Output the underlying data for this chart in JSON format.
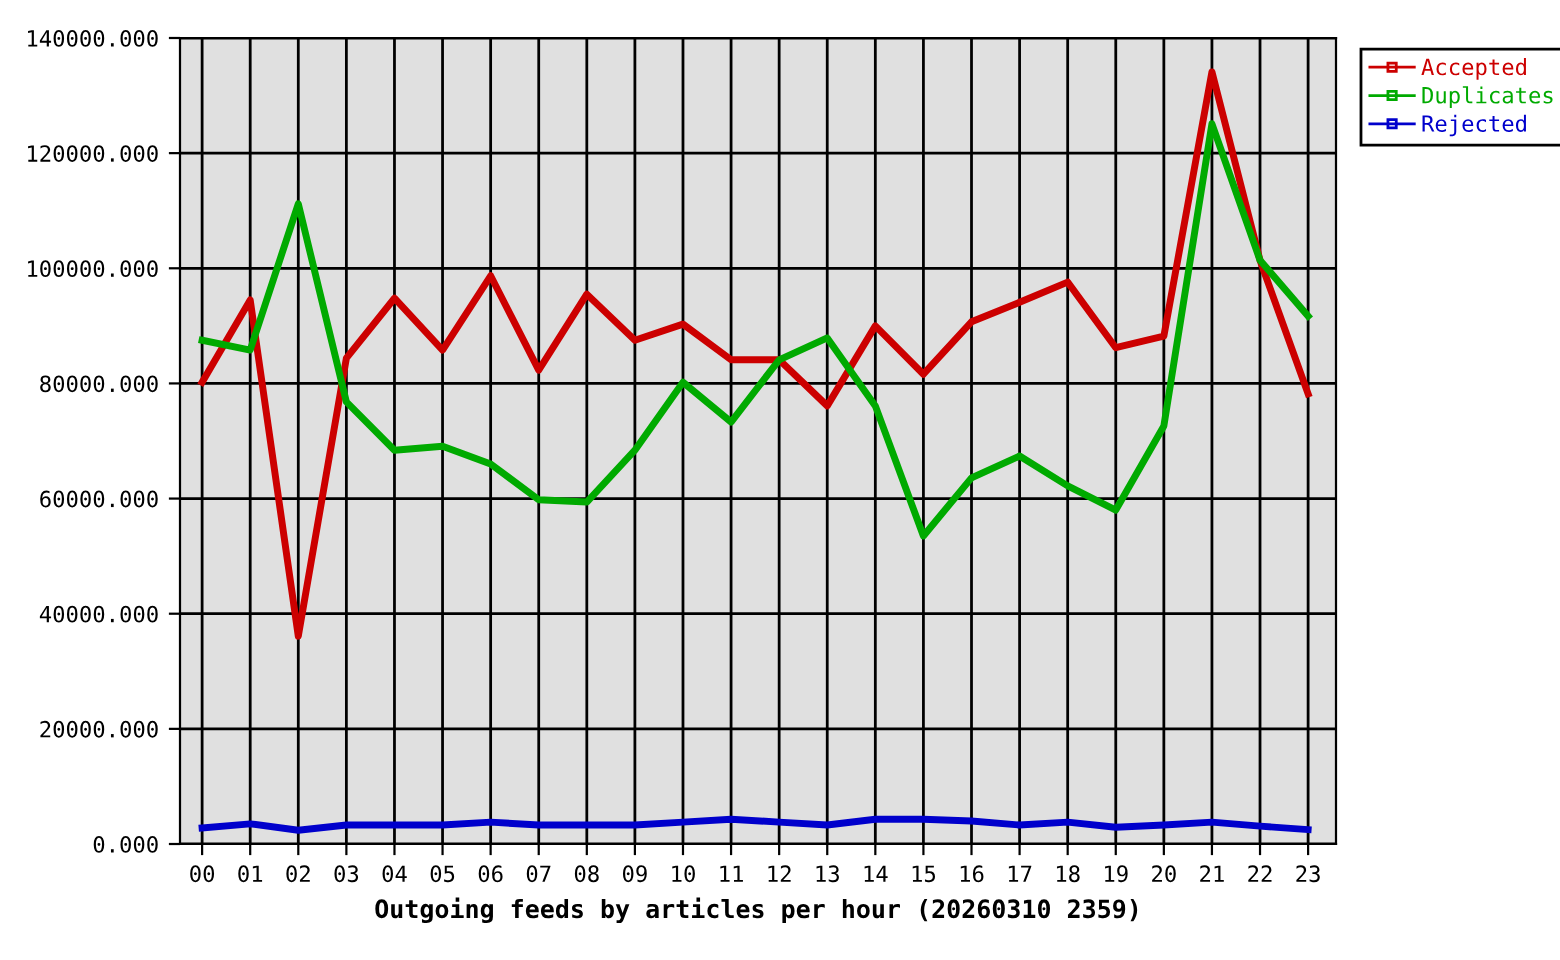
{
  "chart_data": {
    "type": "line",
    "xlabel": "Outgoing feeds by articles per hour (20260310 2359)",
    "categories": [
      "00",
      "01",
      "02",
      "03",
      "04",
      "05",
      "06",
      "07",
      "08",
      "09",
      "10",
      "11",
      "12",
      "13",
      "14",
      "15",
      "16",
      "17",
      "18",
      "19",
      "20",
      "21",
      "22",
      "23"
    ],
    "series": [
      {
        "name": "Accepted",
        "color": "#cc0000",
        "values": [
          80200,
          94500,
          36100,
          84400,
          94800,
          85800,
          98700,
          82300,
          95500,
          87500,
          90300,
          84100,
          84100,
          76100,
          90000,
          81600,
          90700,
          94100,
          97600,
          86200,
          88200,
          134100,
          101400,
          78200
        ]
      },
      {
        "name": "Duplicates",
        "color": "#00aa00",
        "values": [
          87500,
          85800,
          111200,
          76800,
          68400,
          69100,
          66000,
          59800,
          59400,
          68400,
          80200,
          73300,
          84100,
          87900,
          76100,
          53500,
          63600,
          67400,
          62200,
          58000,
          72600,
          125100,
          101400,
          91700
        ]
      },
      {
        "name": "Rejected",
        "color": "#0000cc",
        "values": [
          2800,
          3500,
          2400,
          3300,
          3300,
          3300,
          3800,
          3300,
          3300,
          3300,
          3800,
          4300,
          3800,
          3300,
          4300,
          4300,
          4000,
          3300,
          3800,
          2900,
          3300,
          3800,
          3100,
          2500
        ]
      }
    ],
    "ylim": [
      0,
      140000
    ],
    "yticks": [
      {
        "value": 0,
        "label": "0.000"
      },
      {
        "value": 20000,
        "label": "20000.000"
      },
      {
        "value": 40000,
        "label": "40000.000"
      },
      {
        "value": 60000,
        "label": "60000.000"
      },
      {
        "value": 80000,
        "label": "80000.000"
      },
      {
        "value": 100000,
        "label": "100000.000"
      },
      {
        "value": 120000,
        "label": "120000.000"
      },
      {
        "value": 140000,
        "label": "140000.000"
      }
    ],
    "grid": true,
    "legend": "top right",
    "marker": "none",
    "line_style": "solid"
  }
}
